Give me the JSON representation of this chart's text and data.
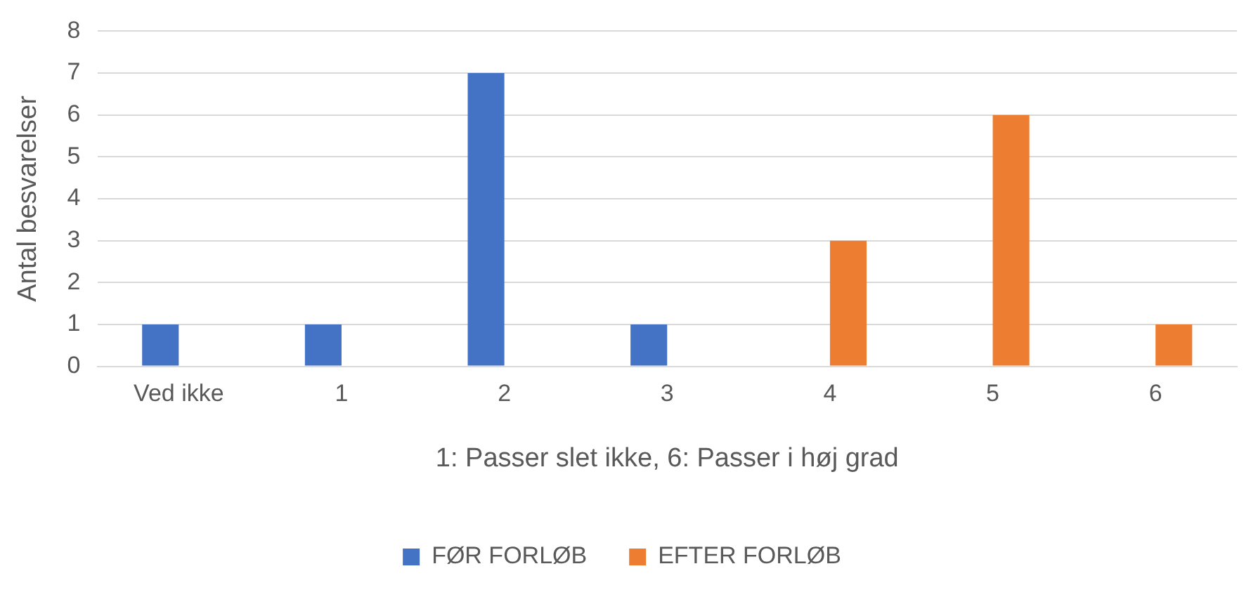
{
  "chart_data": {
    "type": "bar",
    "xlabel": "1: Passer slet ikke, 6: Passer i høj grad",
    "ylabel": "Antal besvarelser",
    "categories": [
      "Ved ikke",
      "1",
      "2",
      "3",
      "4",
      "5",
      "6"
    ],
    "series": [
      {
        "name": "FØR FORLØB",
        "color": "#4472c4",
        "values": [
          1,
          1,
          7,
          1,
          0,
          0,
          0
        ]
      },
      {
        "name": "EFTER FORLØB",
        "color": "#ed7d31",
        "values": [
          0,
          0,
          0,
          0,
          3,
          6,
          1
        ]
      }
    ],
    "ylim": [
      0,
      8
    ],
    "yticks": [
      0,
      1,
      2,
      3,
      4,
      5,
      6,
      7,
      8
    ],
    "grid": "y",
    "legend": "bottom"
  }
}
